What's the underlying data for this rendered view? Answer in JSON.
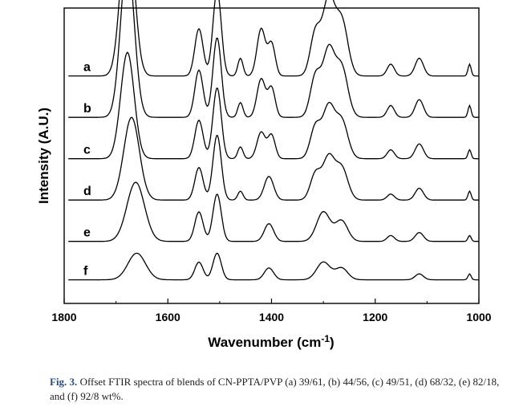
{
  "caption": {
    "label": "Fig. 3.",
    "text": "Offset FTIR spectra of blends of CN-PPTA/PVP (a) 39/61, (b) 44/56, (c) 49/51, (d) 68/32, (e) 82/18, and (f) 92/8 wt%."
  },
  "chart_data": {
    "type": "line",
    "title": "",
    "xlabel": "Wavenumber (cm",
    "xlabel_superscript": "-1",
    "xlabel_suffix": ")",
    "ylabel": "Intensity (A.U.)",
    "xlim": [
      1800,
      1000
    ],
    "x_reversed": true,
    "ylim": [
      0,
      1
    ],
    "x_ticks": [
      1800,
      1600,
      1400,
      1200,
      1000
    ],
    "y_ticks_shown": false,
    "grid": false,
    "legend": "none",
    "color": "#000000",
    "peaks_description": "approximate absorbance relative to each curve baseline",
    "series": [
      {
        "name": "a",
        "offset": 0.77,
        "peaks": [
          [
            1678,
            0.54
          ],
          [
            1540,
            0.16
          ],
          [
            1505,
            0.29
          ],
          [
            1460,
            0.06
          ],
          [
            1420,
            0.16
          ],
          [
            1400,
            0.11
          ],
          [
            1315,
            0.15
          ],
          [
            1290,
            0.25
          ],
          [
            1265,
            0.19
          ],
          [
            1170,
            0.04
          ],
          [
            1115,
            0.06
          ],
          [
            1018,
            0.04
          ]
        ]
      },
      {
        "name": "b",
        "offset": 0.63,
        "peaks": [
          [
            1678,
            0.54
          ],
          [
            1540,
            0.16
          ],
          [
            1505,
            0.27
          ],
          [
            1460,
            0.05
          ],
          [
            1420,
            0.13
          ],
          [
            1400,
            0.1
          ],
          [
            1315,
            0.14
          ],
          [
            1290,
            0.22
          ],
          [
            1265,
            0.17
          ],
          [
            1170,
            0.04
          ],
          [
            1115,
            0.06
          ],
          [
            1018,
            0.04
          ]
        ]
      },
      {
        "name": "c",
        "offset": 0.49,
        "peaks": [
          [
            1678,
            0.36
          ],
          [
            1540,
            0.13
          ],
          [
            1505,
            0.24
          ],
          [
            1460,
            0.04
          ],
          [
            1420,
            0.09
          ],
          [
            1400,
            0.08
          ],
          [
            1315,
            0.11
          ],
          [
            1290,
            0.17
          ],
          [
            1265,
            0.13
          ],
          [
            1170,
            0.03
          ],
          [
            1115,
            0.05
          ],
          [
            1018,
            0.03
          ]
        ]
      },
      {
        "name": "d",
        "offset": 0.35,
        "peaks": [
          [
            1670,
            0.28
          ],
          [
            1540,
            0.11
          ],
          [
            1505,
            0.22
          ],
          [
            1460,
            0.03
          ],
          [
            1405,
            0.08
          ],
          [
            1315,
            0.09
          ],
          [
            1290,
            0.14
          ],
          [
            1265,
            0.11
          ],
          [
            1170,
            0.02
          ],
          [
            1115,
            0.04
          ],
          [
            1018,
            0.03
          ]
        ]
      },
      {
        "name": "e",
        "offset": 0.21,
        "peaks": [
          [
            1662,
            0.2
          ],
          [
            1540,
            0.1
          ],
          [
            1505,
            0.16
          ],
          [
            1405,
            0.06
          ],
          [
            1300,
            0.1
          ],
          [
            1265,
            0.07
          ],
          [
            1170,
            0.02
          ],
          [
            1115,
            0.03
          ],
          [
            1018,
            0.02
          ]
        ]
      },
      {
        "name": "f",
        "offset": 0.08,
        "peaks": [
          [
            1660,
            0.09
          ],
          [
            1540,
            0.06
          ],
          [
            1505,
            0.09
          ],
          [
            1405,
            0.04
          ],
          [
            1300,
            0.06
          ],
          [
            1265,
            0.04
          ],
          [
            1115,
            0.02
          ],
          [
            1018,
            0.02
          ]
        ]
      }
    ]
  }
}
